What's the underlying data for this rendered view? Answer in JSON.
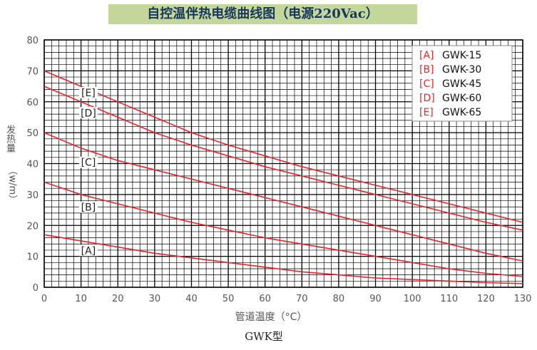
{
  "title": "自控温伴热电缆曲线图（电源220Vac）",
  "caption": "GWK型",
  "chart_data": {
    "type": "line",
    "xlabel": "管道温度（°C）",
    "ylabel_vertical": "发热量",
    "ylabel_units": "（w/m）",
    "xlim": [
      0,
      130
    ],
    "ylim": [
      0,
      80
    ],
    "xticks": [
      0,
      10,
      20,
      30,
      40,
      50,
      60,
      70,
      80,
      90,
      100,
      110,
      120,
      130
    ],
    "yticks": [
      0,
      10,
      20,
      30,
      40,
      50,
      60,
      70,
      80
    ],
    "grid": true,
    "legend_position": "top-right",
    "line_color": "#e8232a",
    "series": [
      {
        "tag": "[A]",
        "name": "GWK-15",
        "x": [
          0,
          10,
          20,
          30,
          40,
          50,
          60,
          70,
          80,
          90,
          100,
          110,
          120,
          130
        ],
        "y": [
          17,
          15,
          13,
          11,
          9.5,
          8,
          6.5,
          5,
          4,
          3,
          2.5,
          2,
          1.5,
          1.2
        ]
      },
      {
        "tag": "[B]",
        "name": "GWK-30",
        "x": [
          0,
          10,
          20,
          30,
          40,
          50,
          60,
          70,
          80,
          90,
          100,
          110,
          120,
          130
        ],
        "y": [
          34,
          30,
          27,
          24,
          21,
          18.5,
          16,
          14,
          12,
          10,
          8,
          6,
          4.5,
          3.5
        ]
      },
      {
        "tag": "[C]",
        "name": "GWK-45",
        "x": [
          0,
          10,
          20,
          30,
          40,
          50,
          60,
          70,
          80,
          90,
          100,
          110,
          120,
          130
        ],
        "y": [
          50,
          45,
          41,
          38,
          35,
          32,
          29,
          26,
          23,
          20,
          17,
          14,
          11,
          8.5
        ]
      },
      {
        "tag": "[D]",
        "name": "GWK-60",
        "x": [
          0,
          10,
          20,
          30,
          40,
          50,
          60,
          70,
          80,
          90,
          100,
          110,
          120,
          130
        ],
        "y": [
          65,
          60,
          55,
          50,
          46,
          42.5,
          39,
          36,
          33,
          30,
          27,
          24,
          21,
          18.5
        ]
      },
      {
        "tag": "[E]",
        "name": "GWK-65",
        "x": [
          0,
          10,
          20,
          30,
          40,
          50,
          60,
          70,
          80,
          90,
          100,
          110,
          120,
          130
        ],
        "y": [
          70,
          65,
          60,
          55,
          50,
          46,
          42.5,
          39,
          36,
          33,
          30,
          27,
          24,
          21
        ]
      }
    ],
    "inline_labels": [
      {
        "text": "[E]",
        "x": 12,
        "y": 62
      },
      {
        "text": "[D]",
        "x": 12,
        "y": 55.5
      },
      {
        "text": "[C]",
        "x": 12,
        "y": 39.5
      },
      {
        "text": "[B]",
        "x": 12,
        "y": 25
      },
      {
        "text": "[A]",
        "x": 12,
        "y": 11
      }
    ]
  }
}
